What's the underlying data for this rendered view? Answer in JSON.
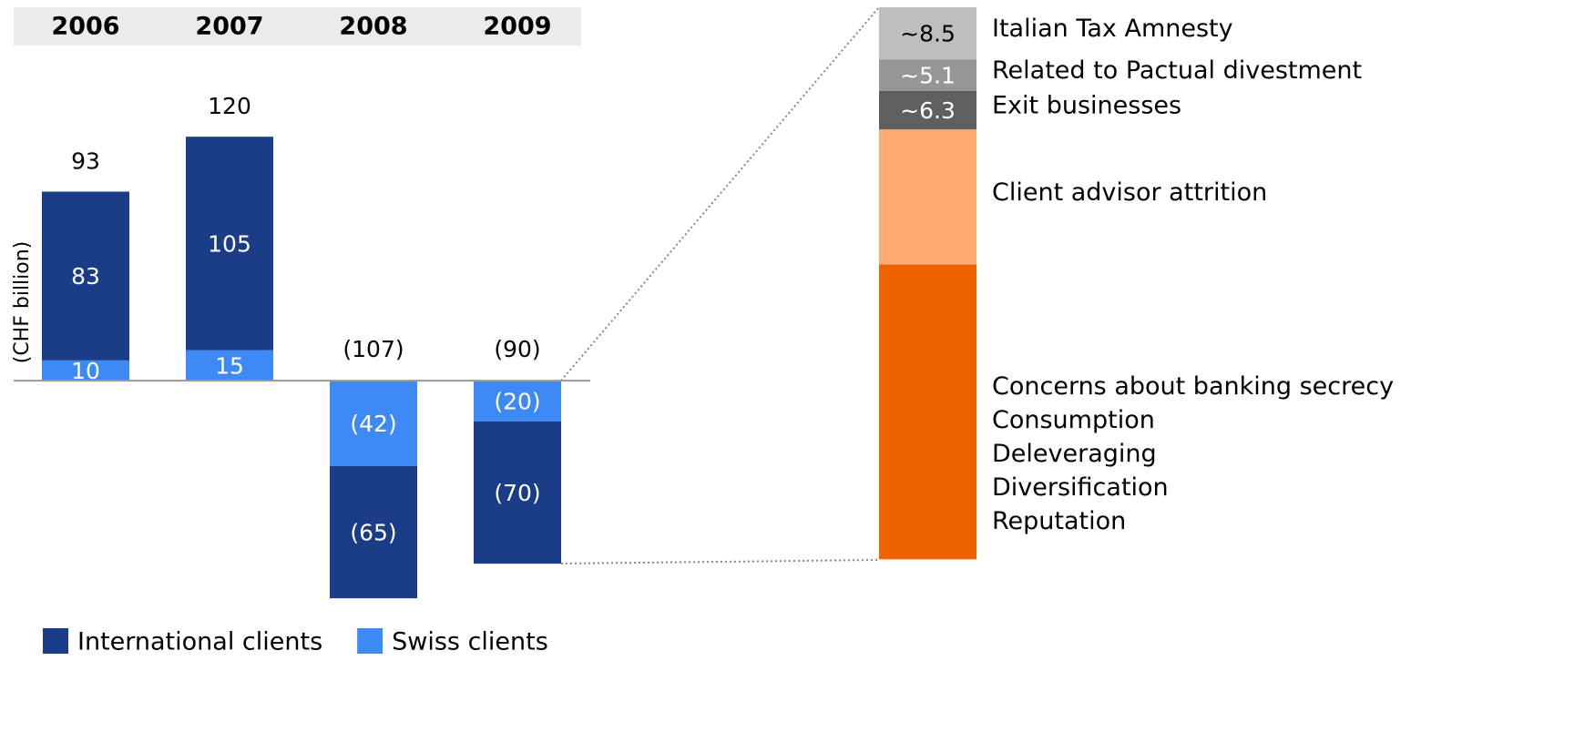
{
  "chart_data": [
    {
      "type": "stacked_bar",
      "y_label": "(CHF billion)",
      "categories": [
        "2006",
        "2007",
        "2008",
        "2009"
      ],
      "series": [
        {
          "name": "International clients",
          "color": "#1b3d87",
          "values": [
            83,
            105,
            -65,
            -70
          ],
          "value_labels": [
            "83",
            "105",
            "(65)",
            "(70)"
          ]
        },
        {
          "name": "Swiss clients",
          "color": "#3d8af7",
          "values": [
            10,
            15,
            -42,
            -20
          ],
          "value_labels": [
            "10",
            "15",
            "(42)",
            "(20)"
          ]
        }
      ],
      "totals": [
        93,
        120,
        -107,
        -90
      ],
      "totals_labels": [
        "93",
        "120",
        "(107)",
        "(90)"
      ],
      "ylim": [
        -115,
        125
      ]
    },
    {
      "type": "breakdown",
      "categories": [
        "Italian Tax Amnesty",
        "Related to Pactual divestment",
        "Exit businesses",
        "Client advisor attrition",
        [
          "Concerns about banking secrecy",
          "Consumption",
          "Deleveraging",
          "Diversification",
          "Reputation"
        ]
      ],
      "values": [
        8.5,
        5.1,
        6.3,
        22,
        48
      ],
      "value_labels": [
        "~8.5",
        "~5.1",
        "~6.3",
        null,
        null
      ],
      "colors": [
        "#bebebe",
        "#969696",
        "#5f5f5f",
        "#ffaa73",
        "#ee6200"
      ],
      "ylim": [
        0,
        90
      ]
    }
  ]
}
